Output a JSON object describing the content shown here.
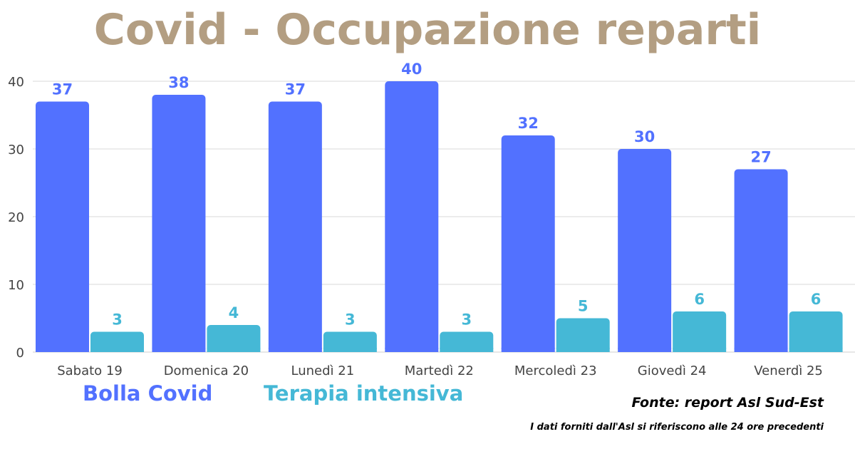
{
  "chart_data": {
    "type": "bar",
    "title": "Covid - Occupazione reparti",
    "categories": [
      "Sabato 19",
      "Domenica 20",
      "Lunedì 21",
      "Martedì 22",
      "Mercoledì 23",
      "Giovedì 24",
      "Venerdì 25"
    ],
    "series": [
      {
        "name": "Bolla Covid",
        "values": [
          37,
          38,
          37,
          40,
          32,
          30,
          27
        ],
        "color": "#5271ff",
        "label_values": [
          37,
          38,
          37,
          40,
          32,
          30,
          27
        ]
      },
      {
        "name": "Terapia intensiva",
        "values": [
          3,
          4,
          3,
          3,
          5,
          6,
          6
        ],
        "color": "#45b8d6",
        "label_values": [
          3,
          4,
          3,
          3,
          5,
          6,
          6
        ]
      }
    ],
    "yticks": [
      0,
      10,
      20,
      30,
      40
    ],
    "ylim": [
      0,
      40
    ],
    "grid": true,
    "xlabel": "",
    "ylabel": ""
  },
  "title_color": "#b39e82",
  "footer": {
    "source": "Fonte: report Asl Sud-Est",
    "note": "I dati forniti dall'Asl si riferiscono alle 24 ore precedenti"
  }
}
